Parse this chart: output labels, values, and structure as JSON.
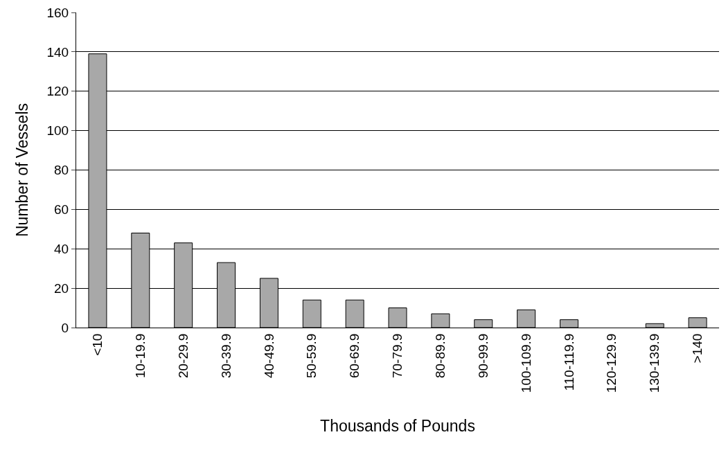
{
  "chart_data": {
    "type": "bar",
    "xlabel": "Thousands of Pounds",
    "ylabel": "Number of Vessels",
    "categories": [
      "<10",
      "10-19.9",
      "20-29.9",
      "30-39.9",
      "40-49.9",
      "50-59.9",
      "60-69.9",
      "70-79.9",
      "80-89.9",
      "90-99.9",
      "100-109.9",
      "110-119.9",
      "120-129.9",
      "130-139.9",
      ">140"
    ],
    "values": [
      139,
      48,
      43,
      33,
      25,
      14,
      14,
      10,
      7,
      4,
      9,
      4,
      null,
      2,
      5
    ],
    "color": "#a8a8a8",
    "ylim": [
      0,
      160
    ],
    "yticks": [
      0,
      20,
      40,
      60,
      80,
      100,
      120,
      140,
      160
    ],
    "grid": "y"
  }
}
